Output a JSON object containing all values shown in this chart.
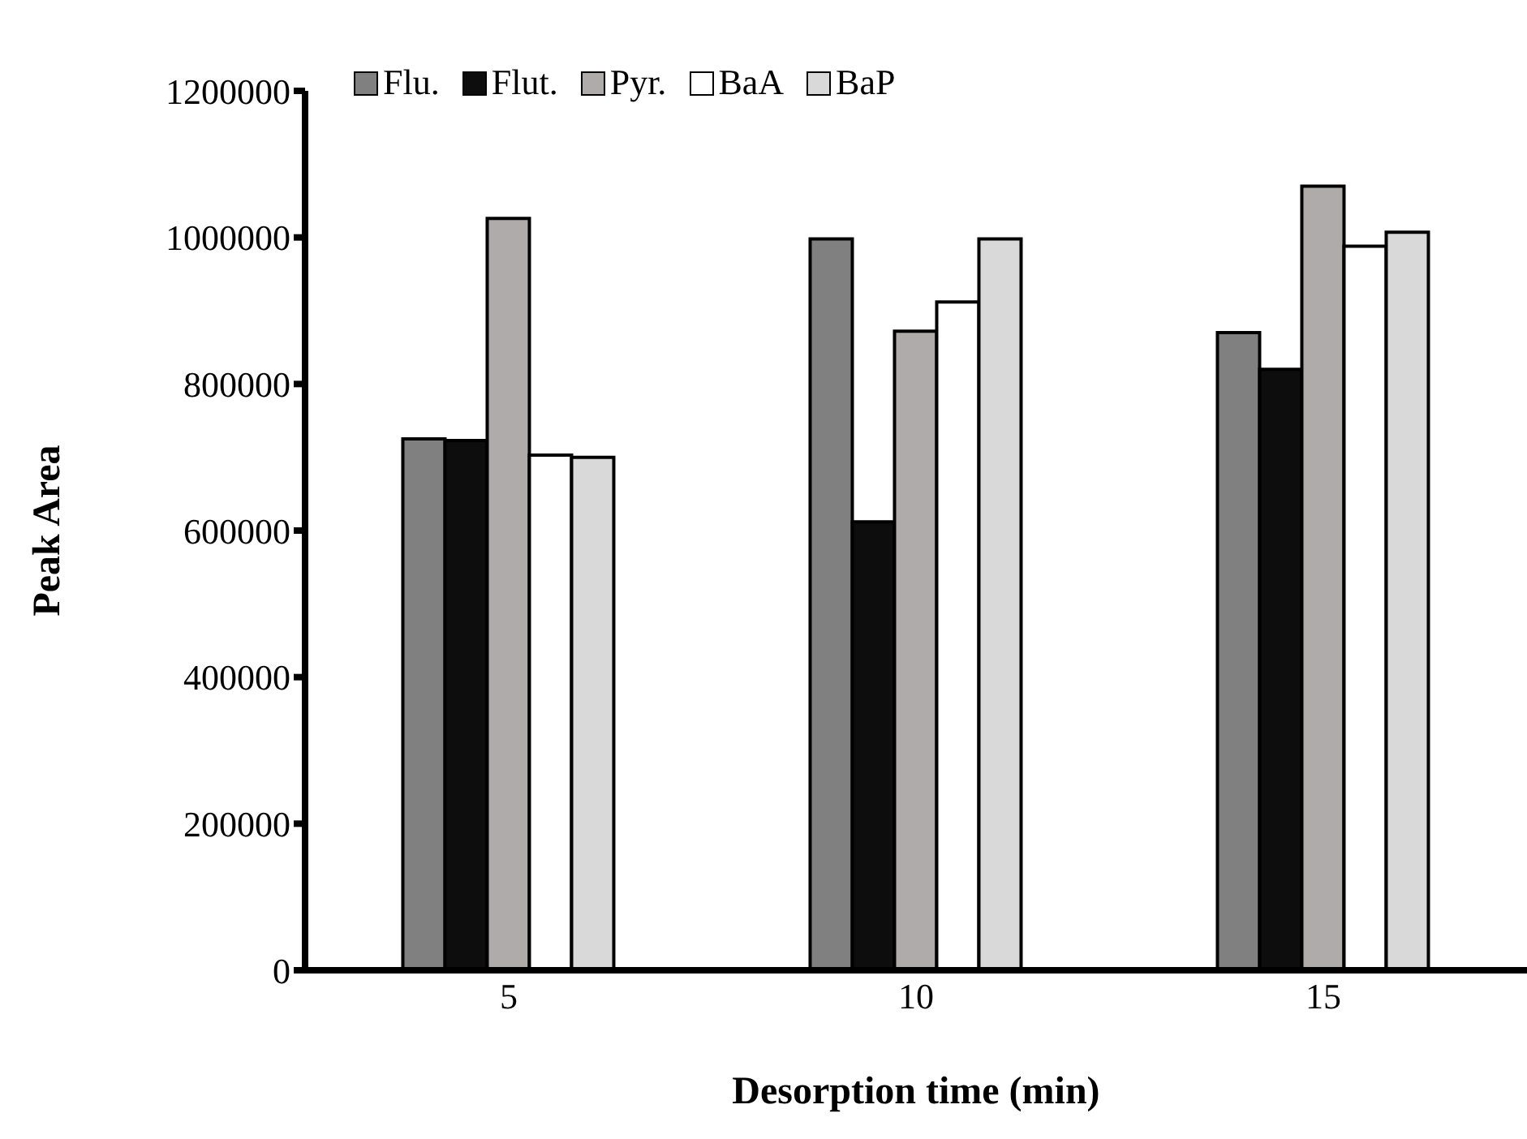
{
  "chart_data": {
    "type": "bar",
    "xlabel": "Desorption time (min)",
    "ylabel": "Peak Area",
    "categories": [
      "5",
      "10",
      "15"
    ],
    "series": [
      {
        "name": "Flu.",
        "color": "#808080",
        "values": [
          725000,
          998000,
          870000
        ]
      },
      {
        "name": "Flut.",
        "color": "#0d0d0d",
        "values": [
          723000,
          612000,
          820000
        ]
      },
      {
        "name": "Pyr.",
        "color": "#afabab",
        "values": [
          1026000,
          872000,
          1070000
        ]
      },
      {
        "name": "BaA",
        "color": "#ffffff",
        "values": [
          703000,
          912000,
          988000
        ]
      },
      {
        "name": "BaP",
        "color": "#d9d9d9",
        "values": [
          700000,
          998000,
          1007000
        ]
      }
    ],
    "ylim": [
      0,
      1200000
    ],
    "yticks": [
      0,
      200000,
      400000,
      600000,
      800000,
      1000000,
      1200000
    ],
    "grid": false,
    "legend": "top left"
  }
}
